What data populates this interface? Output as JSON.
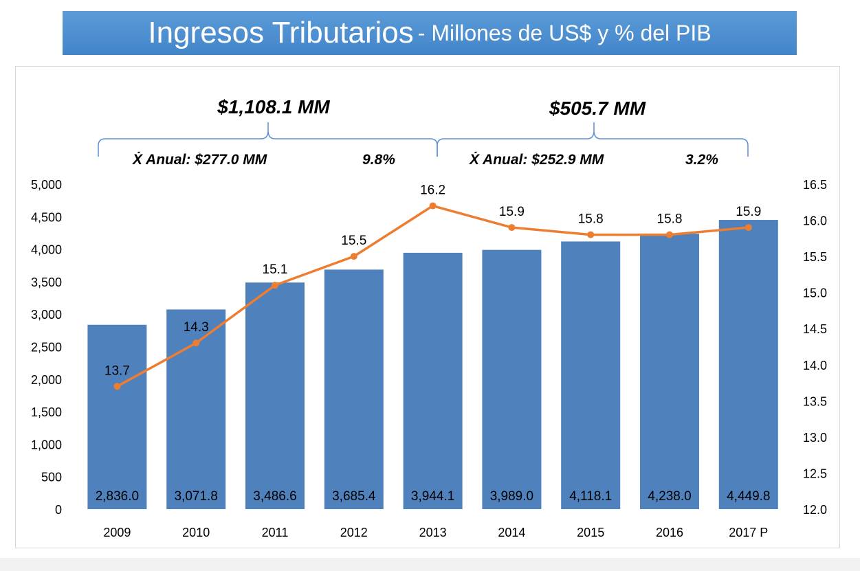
{
  "title": {
    "main": "Ingresos Tributarios",
    "sub": "- Millones de US$ y % del PIB"
  },
  "colors": {
    "banner": "#4a8fd0",
    "bar": "#4f81bd",
    "line": "#ed7d31",
    "bracket": "#5b8fd6"
  },
  "annotations": {
    "left_total": "$1,108.1 MM",
    "left_avg": "Ẋ Anual:  $277.0 MM",
    "left_pct": "9.8%",
    "right_total": "$505.7 MM",
    "right_avg": "Ẋ Anual:  $252.9 MM",
    "right_pct": "3.2%"
  },
  "chart_data": {
    "type": "bar",
    "categories": [
      "2009",
      "2010",
      "2011",
      "2012",
      "2013",
      "2014",
      "2015",
      "2016",
      "2017 P"
    ],
    "series": [
      {
        "type": "bar",
        "axis": "left",
        "values": [
          2836.0,
          3071.8,
          3486.6,
          3685.4,
          3944.1,
          3989.0,
          4118.1,
          4238.0,
          4449.8
        ],
        "labels": [
          "2,836.0",
          "3,071.8",
          "3,486.6",
          "3,685.4",
          "3,944.1",
          "3,989.0",
          "4,118.1",
          "4,238.0",
          "4,449.8"
        ]
      },
      {
        "type": "line",
        "axis": "right",
        "values": [
          13.7,
          14.3,
          15.1,
          15.5,
          16.2,
          15.9,
          15.8,
          15.8,
          15.9
        ],
        "labels": [
          "13.7",
          "14.3",
          "15.1",
          "15.5",
          "16.2",
          "15.9",
          "15.8",
          "15.8",
          "15.9"
        ]
      }
    ],
    "y_left": {
      "lim": [
        0,
        5000
      ],
      "ticks": [
        0,
        500,
        1000,
        1500,
        2000,
        2500,
        3000,
        3500,
        4000,
        4500,
        5000
      ],
      "tick_labels": [
        "0",
        "500",
        "1,000",
        "1,500",
        "2,000",
        "2,500",
        "3,000",
        "3,500",
        "4,000",
        "4,500",
        "5,000"
      ]
    },
    "y_right": {
      "lim": [
        12.0,
        16.5
      ],
      "ticks": [
        12.0,
        12.5,
        13.0,
        13.5,
        14.0,
        14.5,
        15.0,
        15.5,
        16.0,
        16.5
      ],
      "tick_labels": [
        "12.0",
        "12.5",
        "13.0",
        "13.5",
        "14.0",
        "14.5",
        "15.0",
        "15.5",
        "16.0",
        "16.5"
      ]
    },
    "grid": false,
    "legend": "none"
  }
}
